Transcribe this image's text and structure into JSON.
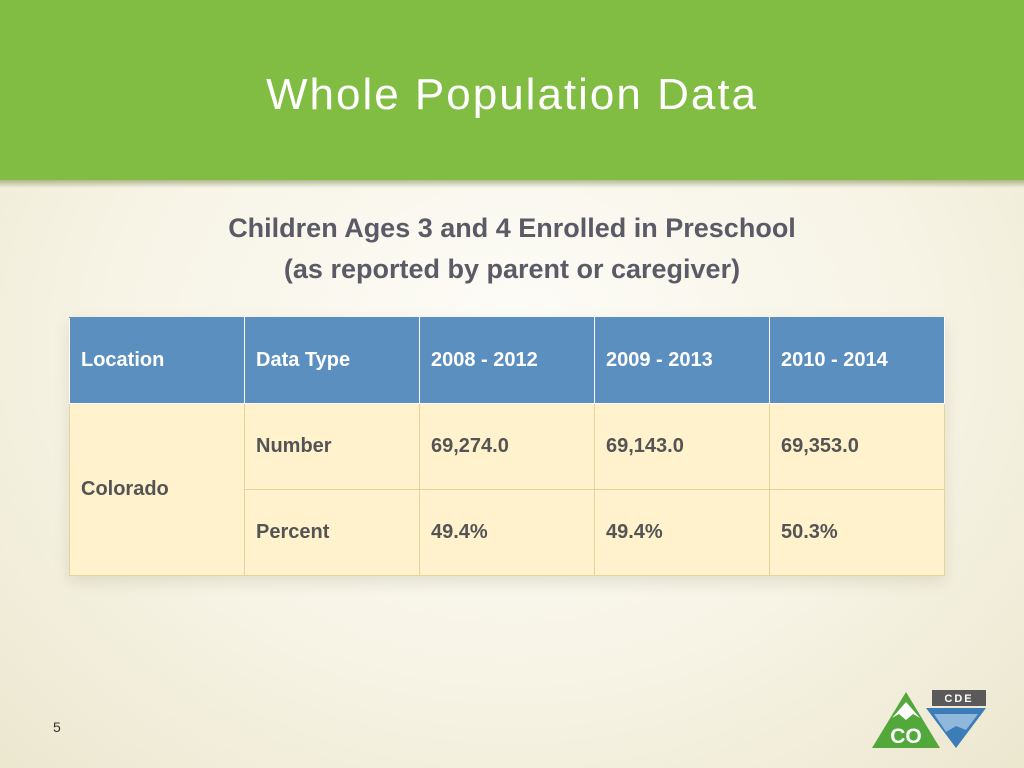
{
  "slide": {
    "title": "Whole Population Data",
    "subtitle_line1": "Children Ages 3 and 4 Enrolled in Preschool",
    "subtitle_line2": "(as reported by parent or caregiver)",
    "page_number": "5"
  },
  "table": {
    "headers": [
      "Location",
      "Data Type",
      "2008 - 2012",
      "2009 - 2013",
      "2010 - 2014"
    ],
    "location": "Colorado",
    "rows": [
      {
        "type": "Number",
        "values": [
          "69,274.0",
          "69,143.0",
          "69,353.0"
        ]
      },
      {
        "type": "Percent",
        "values": [
          "49.4%",
          "49.4%",
          "50.3%"
        ]
      }
    ]
  },
  "logo": {
    "top_text": "CDE",
    "main_text": "CO"
  },
  "colors": {
    "header_green": "#82bd43",
    "table_header_blue": "#5b8fbf",
    "cell_cream": "#fff2cc",
    "logo_green": "#52a83a",
    "logo_blue": "#3c7db7",
    "logo_gray": "#5a5a5a"
  }
}
